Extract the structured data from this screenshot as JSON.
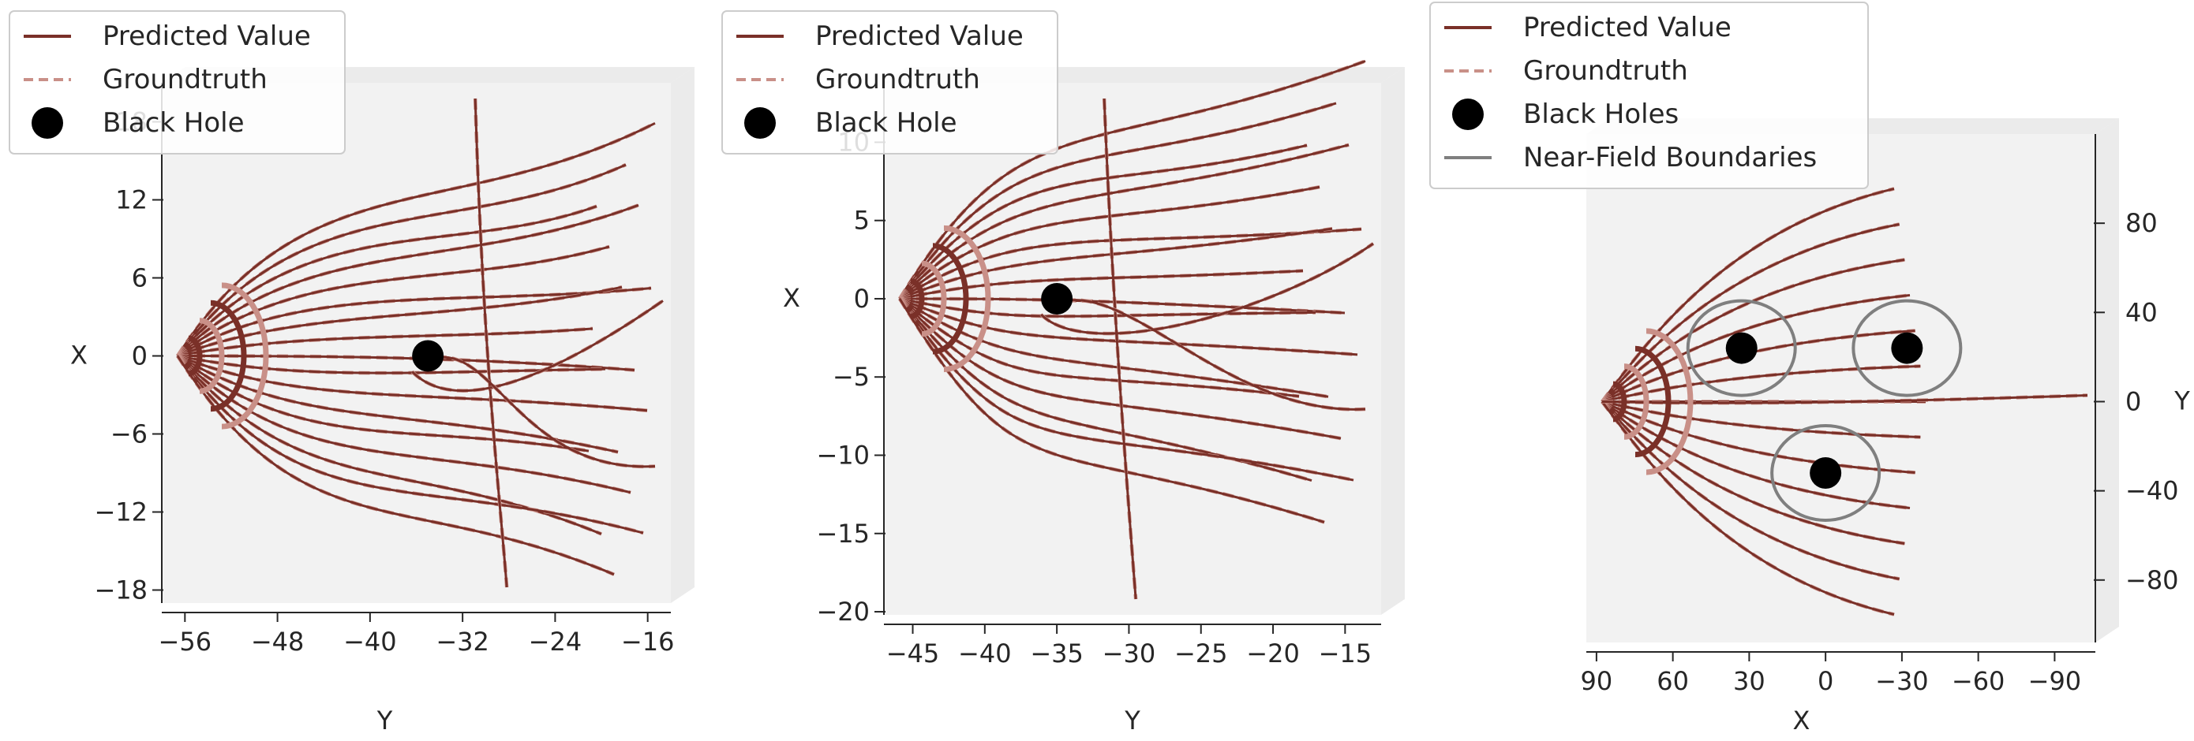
{
  "colors": {
    "predicted": "#7a3028",
    "groundtruth": "#c99088",
    "black_hole": "#000000",
    "boundary": "#7f7f7f",
    "pane": "#f2f2f2",
    "pane_side": "#ebebeb"
  },
  "chart_data": [
    {
      "type": "line",
      "xlabel": "Y",
      "ylabel": "X",
      "xlim": [
        -58,
        -14
      ],
      "ylim": [
        -19,
        21
      ],
      "xticks": [
        -56,
        -48,
        -40,
        -32,
        -24,
        -16
      ],
      "yticks": [
        18,
        12,
        6,
        0,
        -6,
        -12,
        -18
      ],
      "legend": {
        "location": "top-left",
        "entries": [
          {
            "label": "Predicted Value",
            "style": "solid"
          },
          {
            "label": "Groundtruth",
            "style": "dashed"
          },
          {
            "label": "Black Hole",
            "style": "marker"
          }
        ]
      },
      "black_holes": [
        [
          -35,
          0
        ]
      ]
    },
    {
      "type": "line",
      "xlabel": "Y",
      "ylabel": "X",
      "xlim": [
        -47,
        -12.5
      ],
      "ylim": [
        -20.2,
        13.8
      ],
      "xticks": [
        -45,
        -40,
        -35,
        -30,
        -25,
        -20,
        -15
      ],
      "yticks": [
        10,
        5,
        0,
        -5,
        -10,
        -15,
        -20
      ],
      "legend": {
        "location": "top-left",
        "entries": [
          {
            "label": "Predicted Value",
            "style": "solid"
          },
          {
            "label": "Groundtruth",
            "style": "dashed"
          },
          {
            "label": "Black Hole",
            "style": "marker"
          }
        ]
      },
      "black_holes": [
        [
          -35,
          0
        ]
      ]
    },
    {
      "type": "line",
      "xlabel": "X",
      "ylabel": "Y",
      "xlim": [
        94,
        -106
      ],
      "ylim": [
        -108,
        120
      ],
      "xticks": [
        90,
        60,
        30,
        0,
        -30,
        -60,
        -90
      ],
      "yticks": [
        80,
        40,
        0,
        -40,
        -80
      ],
      "legend": {
        "location": "top-left",
        "entries": [
          {
            "label": "Predicted Value",
            "style": "solid"
          },
          {
            "label": "Groundtruth",
            "style": "dashed"
          },
          {
            "label": "Black Holes",
            "style": "marker"
          },
          {
            "label": "Near-Field Boundaries",
            "style": "solid-gray"
          }
        ]
      },
      "black_holes": [
        [
          33,
          24
        ],
        [
          -32,
          24
        ],
        [
          0,
          -32
        ]
      ]
    }
  ]
}
